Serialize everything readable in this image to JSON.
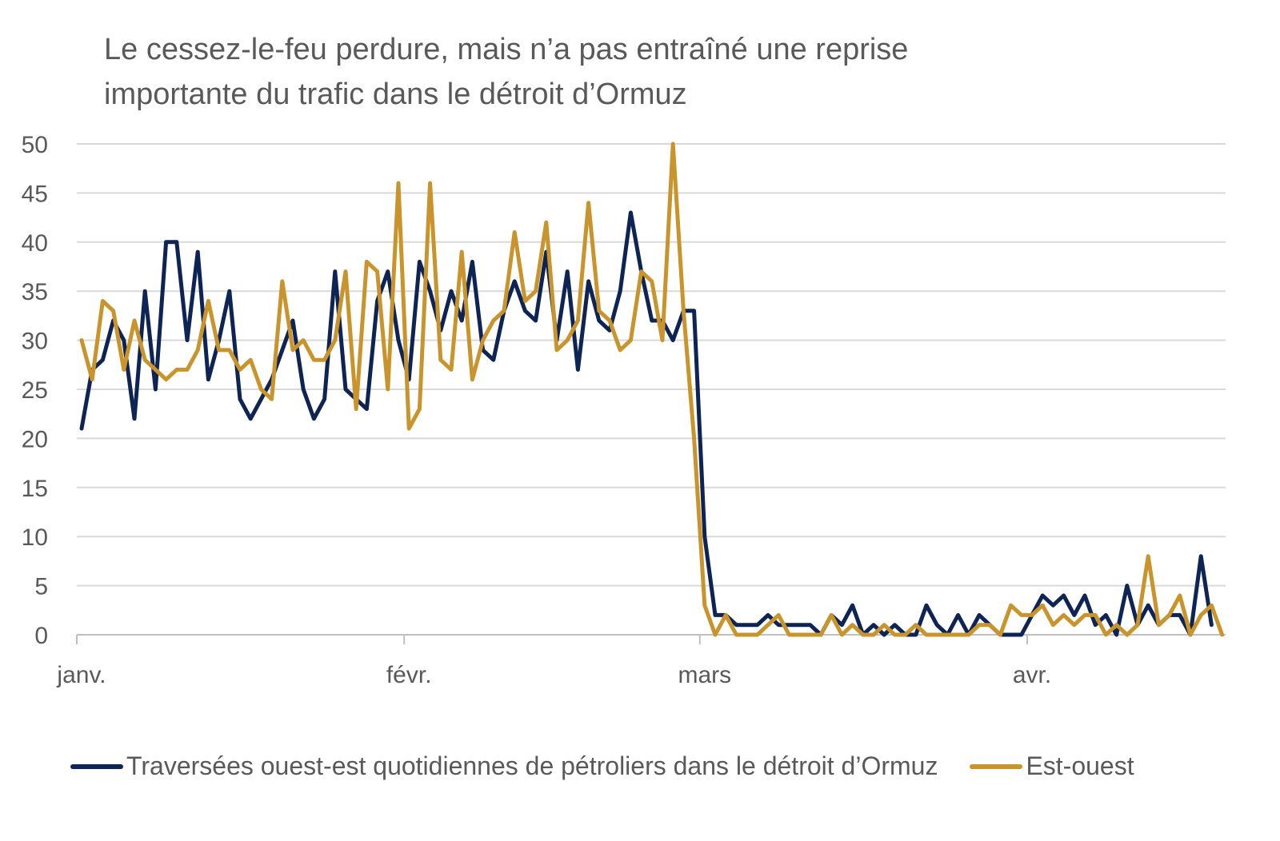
{
  "title_lines": [
    "Le cessez-le-feu perdure, mais n’a pas entraîné une reprise",
    "importante du trafic dans le détroit d’Ormuz"
  ],
  "chart_data": {
    "type": "line",
    "title": "Le cessez-le-feu perdure, mais n’a pas entraîné une reprise importante du trafic dans le détroit d’Ormuz",
    "xlabel": "",
    "ylabel": "",
    "ylim": [
      0,
      50
    ],
    "yticks": [
      0,
      5,
      10,
      15,
      20,
      25,
      30,
      35,
      40,
      45,
      50
    ],
    "xticks": [
      {
        "label": "janv.",
        "day": 0
      },
      {
        "label": "févr.",
        "day": 31
      },
      {
        "label": "mars",
        "day": 59
      },
      {
        "label": "avr.",
        "day": 90
      }
    ],
    "grid": true,
    "legend_position": "bottom",
    "series": [
      {
        "name": "Traversées ouest-est quotidiennes de pétroliers dans le détroit d’Ormuz",
        "color": "#0d2454",
        "values": [
          21,
          27,
          28,
          32,
          30,
          22,
          35,
          25,
          40,
          40,
          30,
          39,
          26,
          30,
          35,
          24,
          22,
          24,
          26,
          29,
          32,
          25,
          22,
          24,
          37,
          25,
          24,
          23,
          34,
          37,
          30,
          26,
          38,
          35,
          31,
          35,
          32,
          38,
          29,
          28,
          33,
          36,
          33,
          32,
          39,
          30,
          37,
          27,
          36,
          32,
          31,
          35,
          43,
          37,
          32,
          32,
          30,
          33,
          33,
          10,
          2,
          2,
          1,
          1,
          1,
          2,
          1,
          1,
          1,
          1,
          0,
          2,
          1,
          3,
          0,
          1,
          0,
          1,
          0,
          0,
          3,
          1,
          0,
          2,
          0,
          2,
          1,
          0,
          0,
          0,
          2,
          4,
          3,
          4,
          2,
          4,
          1,
          2,
          0,
          5,
          1,
          3,
          1,
          2,
          2,
          0,
          8,
          1
        ]
      },
      {
        "name": "Est-ouest",
        "color": "#c9942b",
        "values": [
          30,
          26,
          34,
          33,
          27,
          32,
          28,
          27,
          26,
          27,
          27,
          29,
          34,
          29,
          29,
          27,
          28,
          25,
          24,
          36,
          29,
          30,
          28,
          28,
          30,
          37,
          23,
          38,
          37,
          25,
          46,
          21,
          23,
          46,
          28,
          27,
          39,
          26,
          30,
          32,
          33,
          41,
          34,
          35,
          42,
          29,
          30,
          32,
          44,
          33,
          32,
          29,
          30,
          37,
          36,
          30,
          50,
          33,
          20,
          3,
          0,
          2,
          0,
          0,
          0,
          1,
          2,
          0,
          0,
          0,
          0,
          2,
          0,
          1,
          0,
          0,
          1,
          0,
          0,
          1,
          0,
          0,
          0,
          0,
          0,
          1,
          1,
          0,
          3,
          2,
          2,
          3,
          1,
          2,
          1,
          2,
          2,
          0,
          1,
          0,
          1,
          8,
          1,
          2,
          4,
          0,
          2,
          3,
          0
        ]
      }
    ]
  },
  "legend": [
    {
      "label": "Traversées ouest-est quotidiennes de pétroliers dans le détroit d’Ormuz",
      "color": "#0d2454"
    },
    {
      "label": "Est-ouest",
      "color": "#c9942b"
    }
  ]
}
